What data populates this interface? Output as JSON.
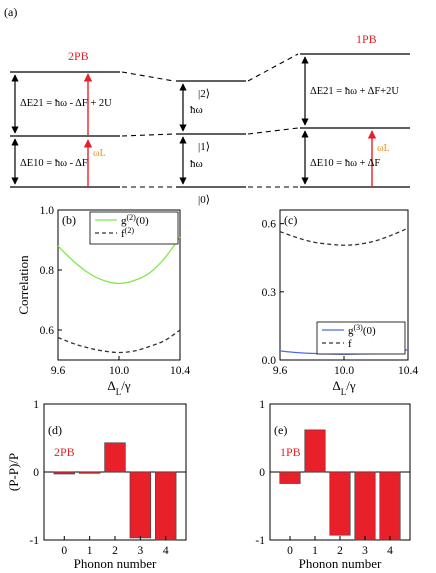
{
  "panel_labels": {
    "a": "(a)",
    "b": "(b)",
    "c": "(c)",
    "d": "(d)",
    "e": "(e)"
  },
  "diagram": {
    "left_title": "2PB",
    "right_title": "1PB",
    "state_2": "|2⟩",
    "state_1": "|1⟩",
    "state_0": "|0⟩",
    "hw": "ħω",
    "left_dE21": "ΔE21 = ħω - ΔF + 2U",
    "left_dE10": "ΔE10 = ħω - ΔF",
    "right_dE21": "ΔE21 = ħω + ΔF+2U",
    "right_dE10": "ΔE10 = ħω + ΔF",
    "laser_label": "ωL",
    "colors": {
      "red_arrow": "#e8202a",
      "title_red": "#e8202a",
      "laser_orange": "#f0901e"
    }
  },
  "chart_data": [
    {
      "type": "line",
      "panel": "(b)",
      "xlabel": "ΔL/γ",
      "ylabel": "Correlation",
      "xlim": [
        9.6,
        10.4
      ],
      "ylim": [
        0.5,
        1.0
      ],
      "xticks": [
        "9.6",
        "10.0",
        "10.4"
      ],
      "yticks": [
        "0.6",
        "0.8",
        "1.0"
      ],
      "legend_position": "top-left",
      "series": [
        {
          "name": "g(2)(0)",
          "color": "#7ee84c",
          "dash": false,
          "x": [
            9.6,
            9.7,
            9.8,
            9.9,
            10.0,
            10.1,
            10.2,
            10.3,
            10.4
          ],
          "y": [
            0.88,
            0.83,
            0.79,
            0.765,
            0.755,
            0.765,
            0.79,
            0.84,
            0.91
          ]
        },
        {
          "name": "f(2)",
          "color": "#333333",
          "dash": true,
          "x": [
            9.6,
            9.7,
            9.8,
            9.9,
            10.0,
            10.1,
            10.2,
            10.3,
            10.4
          ],
          "y": [
            0.575,
            0.555,
            0.54,
            0.53,
            0.525,
            0.53,
            0.545,
            0.565,
            0.6
          ]
        }
      ]
    },
    {
      "type": "line",
      "panel": "(c)",
      "xlabel": "ΔL/γ",
      "ylabel": "",
      "xlim": [
        9.6,
        10.4
      ],
      "ylim": [
        0.0,
        0.66
      ],
      "xticks": [
        "9.6",
        "10.0",
        "10.4"
      ],
      "yticks": [
        "0.0",
        "0.3",
        "0.6"
      ],
      "legend_position": "bottom-right",
      "series": [
        {
          "name": "g(3)(0)",
          "color": "#4a6fe0",
          "dash": false,
          "x": [
            9.6,
            9.7,
            9.8,
            9.9,
            10.0,
            10.1,
            10.2,
            10.3,
            10.4
          ],
          "y": [
            0.04,
            0.033,
            0.029,
            0.027,
            0.026,
            0.027,
            0.029,
            0.034,
            0.045
          ]
        },
        {
          "name": "f",
          "color": "#333333",
          "dash": true,
          "x": [
            9.6,
            9.7,
            9.8,
            9.9,
            10.0,
            10.1,
            10.2,
            10.3,
            10.4
          ],
          "y": [
            0.565,
            0.54,
            0.52,
            0.51,
            0.505,
            0.51,
            0.525,
            0.55,
            0.58
          ]
        }
      ]
    },
    {
      "type": "bar",
      "panel": "(d)",
      "annotation": "2PB",
      "xlabel": "Phonon number",
      "ylabel": "(P-P)/P",
      "ylim": [
        -1,
        1
      ],
      "yticks": [
        "-1",
        "0",
        "1"
      ],
      "categories": [
        "0",
        "1",
        "2",
        "3",
        "4"
      ],
      "values": [
        -0.03,
        -0.02,
        0.43,
        -0.97,
        -1.0
      ],
      "color": "#e8202a"
    },
    {
      "type": "bar",
      "panel": "(e)",
      "annotation": "1PB",
      "xlabel": "Phonon number",
      "ylabel": "",
      "ylim": [
        -1,
        1
      ],
      "yticks": [
        "-1",
        "0",
        "1"
      ],
      "categories": [
        "0",
        "1",
        "2",
        "3",
        "4"
      ],
      "values": [
        -0.17,
        0.62,
        -0.93,
        -1.0,
        -1.0
      ],
      "color": "#e8202a"
    }
  ]
}
